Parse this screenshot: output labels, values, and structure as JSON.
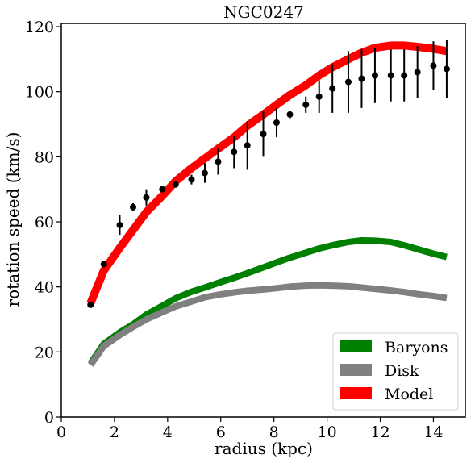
{
  "chart_data": {
    "type": "line",
    "title": "NGC0247",
    "xlabel": "radius (kpc)",
    "ylabel": "rotation speed (km/s)",
    "xlim": [
      0,
      15.2
    ],
    "ylim": [
      0,
      121
    ],
    "xticks": [
      0,
      2,
      4,
      6,
      8,
      10,
      12,
      14
    ],
    "yticks": [
      0,
      20,
      40,
      60,
      80,
      100,
      120
    ],
    "legend_position": "lower-right",
    "series": [
      {
        "name": "Baryons",
        "color": "#008000",
        "x": [
          1.1,
          1.6,
          2.2,
          2.7,
          3.2,
          3.8,
          4.3,
          4.9,
          5.4,
          5.9,
          6.5,
          7.0,
          7.6,
          8.1,
          8.6,
          9.2,
          9.7,
          10.2,
          10.8,
          11.3,
          11.8,
          12.4,
          12.9,
          13.4,
          14.0,
          14.5
        ],
        "y": [
          16.5,
          22.5,
          26.0,
          28.5,
          31.5,
          34.2,
          36.5,
          38.5,
          39.8,
          41.2,
          42.8,
          44.2,
          46.0,
          47.5,
          49.0,
          50.5,
          51.8,
          52.8,
          53.8,
          54.3,
          54.2,
          53.8,
          52.8,
          51.6,
          50.2,
          49.2
        ]
      },
      {
        "name": "Disk",
        "color": "#808080",
        "x": [
          1.1,
          1.6,
          2.2,
          2.7,
          3.2,
          3.8,
          4.3,
          4.9,
          5.4,
          5.9,
          6.5,
          7.0,
          7.6,
          8.1,
          8.6,
          9.2,
          9.7,
          10.2,
          10.8,
          11.3,
          11.8,
          12.4,
          12.9,
          13.4,
          14.0,
          14.5
        ],
        "y": [
          16.0,
          21.8,
          25.2,
          27.7,
          30.0,
          32.2,
          34.0,
          35.5,
          36.8,
          37.6,
          38.3,
          38.8,
          39.2,
          39.6,
          40.1,
          40.4,
          40.5,
          40.4,
          40.2,
          39.8,
          39.4,
          38.9,
          38.4,
          37.8,
          37.2,
          36.6
        ]
      },
      {
        "name": "Model",
        "color": "#ff0000",
        "x": [
          1.1,
          1.6,
          2.2,
          2.7,
          3.2,
          3.8,
          4.3,
          4.9,
          5.4,
          5.9,
          6.5,
          7.0,
          7.6,
          8.1,
          8.6,
          9.2,
          9.7,
          10.2,
          10.8,
          11.3,
          11.8,
          12.4,
          12.9,
          13.4,
          14.0,
          14.5
        ],
        "y": [
          35.0,
          45.0,
          52.0,
          57.5,
          63.0,
          68.0,
          72.5,
          76.5,
          79.5,
          82.5,
          86.0,
          89.5,
          93.0,
          96.0,
          99.0,
          102.0,
          105.0,
          107.5,
          110.0,
          112.0,
          113.5,
          114.2,
          114.2,
          113.8,
          113.2,
          112.5
        ]
      }
    ],
    "observed": {
      "color": "#000000",
      "x": [
        1.1,
        1.6,
        2.2,
        2.7,
        3.2,
        3.8,
        4.3,
        4.9,
        5.4,
        5.9,
        6.5,
        7.0,
        7.6,
        8.1,
        8.6,
        9.2,
        9.7,
        10.2,
        10.8,
        11.3,
        11.8,
        12.4,
        12.9,
        13.4,
        14.0,
        14.5
      ],
      "y": [
        34.5,
        47.0,
        59.0,
        64.5,
        67.5,
        70.0,
        71.5,
        73.0,
        75.0,
        78.5,
        81.5,
        83.5,
        87.0,
        90.5,
        93.0,
        96.0,
        98.5,
        101.0,
        103.0,
        104.0,
        105.0,
        105.0,
        105.0,
        106.0,
        108.0,
        107.0
      ],
      "err": [
        0.5,
        0.5,
        3.0,
        1.2,
        2.5,
        0.8,
        1.0,
        1.5,
        3.0,
        4.0,
        5.0,
        7.5,
        7.0,
        4.5,
        1.2,
        2.5,
        5.0,
        7.5,
        9.5,
        9.0,
        8.5,
        8.0,
        8.0,
        8.0,
        7.5,
        9.0
      ]
    }
  }
}
